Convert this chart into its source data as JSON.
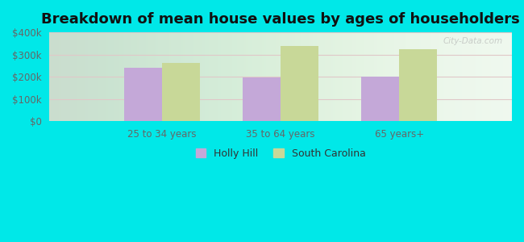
{
  "title": "Breakdown of mean house values by ages of householders",
  "categories": [
    "25 to 34 years",
    "35 to 64 years",
    "65 years+"
  ],
  "holly_hill_values": [
    240000,
    198000,
    202000
  ],
  "south_carolina_values": [
    263000,
    338000,
    325000
  ],
  "holly_hill_color": "#c4a8d8",
  "south_carolina_color": "#c8d898",
  "background_outer": "#00e8e8",
  "ylim": [
    0,
    400000
  ],
  "yticks": [
    0,
    100000,
    200000,
    300000,
    400000
  ],
  "ytick_labels": [
    "$0",
    "$100k",
    "$200k",
    "$300k",
    "$400k"
  ],
  "legend_labels": [
    "Holly Hill",
    "South Carolina"
  ],
  "title_fontsize": 13,
  "bar_width": 0.32,
  "grid_color": "#dddddd",
  "tick_color": "#666666"
}
